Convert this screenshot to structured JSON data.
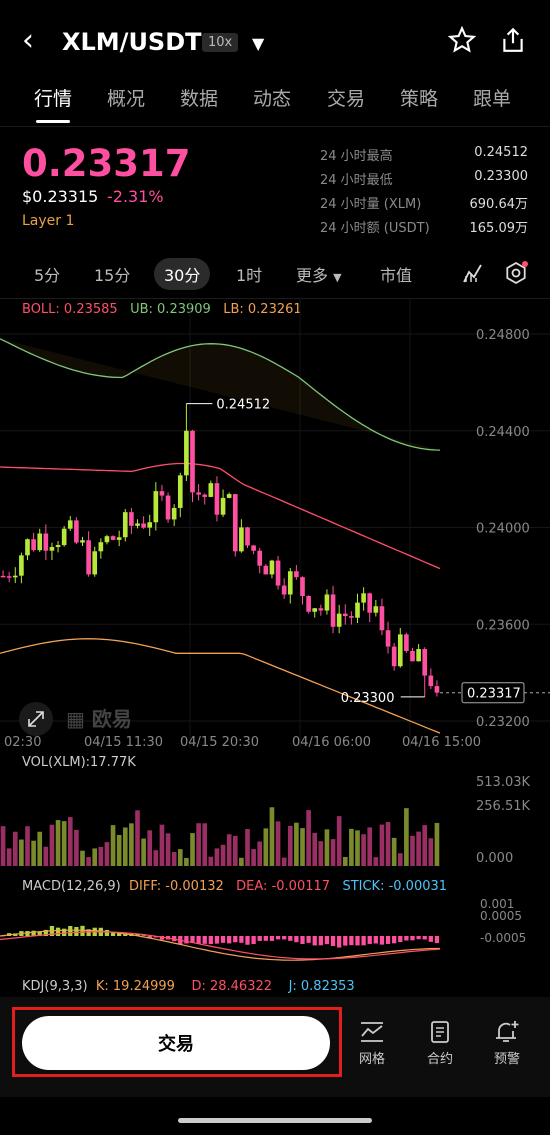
{
  "header": {
    "pair": "XLM/USDT",
    "leverage": "10x"
  },
  "tabs": [
    "行情",
    "概况",
    "数据",
    "动态",
    "交易",
    "策略",
    "跟单"
  ],
  "ticker": {
    "price": "0.23317",
    "usd_price": "$0.23315",
    "change": "-2.31%",
    "tag": "Layer 1"
  },
  "stats": [
    {
      "label": "24 小时最高",
      "value": "0.24512"
    },
    {
      "label": "24 小时最低",
      "value": "0.23300"
    },
    {
      "label": "24 小时量 (XLM)",
      "value": "690.64万"
    },
    {
      "label": "24 小时额 (USDT)",
      "value": "165.09万"
    }
  ],
  "intervals": [
    "5分",
    "15分",
    "30分",
    "1时",
    "更多",
    "市值"
  ],
  "boll": {
    "boll": "BOLL: 0.23585",
    "ub": "UB: 0.23909",
    "lb": "LB: 0.23261"
  },
  "price_axis": [
    "0.24800",
    "0.24400",
    "0.24000",
    "0.23600",
    "0.23200"
  ],
  "annotations": {
    "high": "0.24512",
    "low": "0.23300",
    "last": "0.23317"
  },
  "watermark": "欧易",
  "time_axis": [
    "02:30",
    "04/15 11:30",
    "04/15 20:30",
    "04/16 06:00",
    "04/16 15:00"
  ],
  "vol": {
    "label": "VOL(XLM):17.77K",
    "axis": [
      "513.03K",
      "256.51K",
      "0.000"
    ]
  },
  "macd": {
    "label": "MACD(12,26,9)",
    "diff": "DIFF: -0.00132",
    "dea": "DEA: -0.00117",
    "stick": "STICK: -0.00031",
    "axis": [
      "0.001",
      "0.0005",
      "-0.0005"
    ]
  },
  "kdj": {
    "label": "KDJ(9,3,3)",
    "k": "K: 19.24999",
    "d": "D: 28.46322",
    "j": "J: 0.82353"
  },
  "bottom": {
    "trade": "交易",
    "grid": "网格",
    "contract": "合约",
    "alert": "预警"
  },
  "colors": {
    "up": "#b7e83a",
    "down": "#ff4fa0",
    "ub": "#7fc77a",
    "mid": "#ff4f6a",
    "lb": "#f2a154"
  }
}
